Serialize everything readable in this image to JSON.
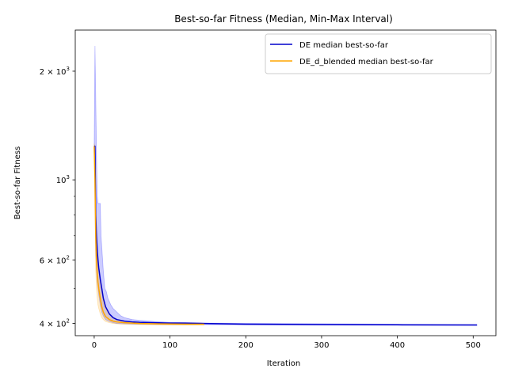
{
  "chart_data": {
    "type": "line",
    "title": "Best-so-far Fitness (Median, Min-Max Interval)",
    "xlabel": "Iteration",
    "ylabel": "Best-so-far Fitness",
    "xlim": [
      -25,
      530
    ],
    "ylim": [
      370,
      2600
    ],
    "yscale": "log",
    "grid": false,
    "legend_position": "upper right",
    "x_ticks": [
      {
        "value": 0,
        "label": "0"
      },
      {
        "value": 100,
        "label": "100"
      },
      {
        "value": 200,
        "label": "200"
      },
      {
        "value": 300,
        "label": "300"
      },
      {
        "value": 400,
        "label": "400"
      },
      {
        "value": 500,
        "label": "500"
      }
    ],
    "y_ticks_major": [
      {
        "value": 400,
        "base": "4",
        "exp": "2"
      },
      {
        "value": 600,
        "base": "6",
        "exp": "2"
      },
      {
        "value": 1000,
        "label": "10",
        "exp": "3"
      },
      {
        "value": 2000,
        "base": "2",
        "exp": "3"
      }
    ],
    "y_ticks_minor": [
      500,
      700,
      800,
      900
    ],
    "series": [
      {
        "name": "DE median best-so-far",
        "color": "#0000cc",
        "band_color": "#0000ff",
        "median": [
          [
            0,
            1240
          ],
          [
            1,
            1240
          ],
          [
            2,
            800
          ],
          [
            3,
            700
          ],
          [
            4,
            640
          ],
          [
            5,
            600
          ],
          [
            6,
            570
          ],
          [
            8,
            530
          ],
          [
            10,
            500
          ],
          [
            12,
            470
          ],
          [
            15,
            445
          ],
          [
            20,
            425
          ],
          [
            25,
            415
          ],
          [
            30,
            410
          ],
          [
            40,
            406
          ],
          [
            50,
            404
          ],
          [
            60,
            403
          ],
          [
            80,
            402
          ],
          [
            100,
            401
          ],
          [
            120,
            401
          ],
          [
            145,
            400
          ],
          [
            200,
            398
          ],
          [
            300,
            397
          ],
          [
            400,
            396.5
          ],
          [
            505,
            396
          ]
        ],
        "band_upper": [
          [
            0,
            1250
          ],
          [
            1,
            2350
          ],
          [
            2,
            1700
          ],
          [
            3,
            1200
          ],
          [
            4,
            900
          ],
          [
            5,
            860
          ],
          [
            6,
            860
          ],
          [
            8,
            860
          ],
          [
            9,
            700
          ],
          [
            10,
            650
          ],
          [
            12,
            560
          ],
          [
            14,
            500
          ],
          [
            16,
            490
          ],
          [
            18,
            470
          ],
          [
            20,
            460
          ],
          [
            22,
            450
          ],
          [
            25,
            440
          ],
          [
            30,
            430
          ],
          [
            35,
            420
          ],
          [
            40,
            415
          ],
          [
            50,
            410
          ],
          [
            60,
            408
          ],
          [
            80,
            405
          ],
          [
            100,
            403
          ],
          [
            145,
            401
          ],
          [
            505,
            397
          ]
        ],
        "band_lower": [
          [
            0,
            1230
          ],
          [
            1,
            1100
          ],
          [
            2,
            640
          ],
          [
            3,
            560
          ],
          [
            4,
            520
          ],
          [
            5,
            500
          ],
          [
            6,
            480
          ],
          [
            8,
            450
          ],
          [
            10,
            430
          ],
          [
            12,
            420
          ],
          [
            15,
            410
          ],
          [
            20,
            405
          ],
          [
            25,
            402
          ],
          [
            30,
            400
          ],
          [
            40,
            399
          ],
          [
            60,
            398
          ],
          [
            100,
            397
          ],
          [
            145,
            397
          ],
          [
            505,
            395
          ]
        ]
      },
      {
        "name": "DE_d_blended median best-so-far",
        "color": "#ffa500",
        "band_color": "#ffa500",
        "median": [
          [
            0,
            1240
          ],
          [
            1,
            1000
          ],
          [
            2,
            700
          ],
          [
            3,
            600
          ],
          [
            4,
            550
          ],
          [
            5,
            520
          ],
          [
            6,
            500
          ],
          [
            8,
            470
          ],
          [
            10,
            445
          ],
          [
            12,
            430
          ],
          [
            15,
            418
          ],
          [
            20,
            410
          ],
          [
            25,
            406
          ],
          [
            30,
            404
          ],
          [
            40,
            402
          ],
          [
            50,
            401
          ],
          [
            60,
            400
          ],
          [
            80,
            399
          ],
          [
            100,
            398.5
          ],
          [
            120,
            398
          ],
          [
            145,
            398
          ]
        ],
        "band_upper": [
          [
            0,
            1260
          ],
          [
            1,
            1240
          ],
          [
            2,
            900
          ],
          [
            3,
            720
          ],
          [
            4,
            640
          ],
          [
            5,
            600
          ],
          [
            6,
            560
          ],
          [
            8,
            520
          ],
          [
            10,
            490
          ],
          [
            12,
            460
          ],
          [
            15,
            440
          ],
          [
            20,
            425
          ],
          [
            25,
            415
          ],
          [
            30,
            410
          ],
          [
            40,
            406
          ],
          [
            50,
            404
          ],
          [
            60,
            402
          ],
          [
            100,
            400
          ],
          [
            145,
            399
          ]
        ],
        "band_lower": [
          [
            0,
            1200
          ],
          [
            1,
            800
          ],
          [
            2,
            560
          ],
          [
            3,
            500
          ],
          [
            4,
            470
          ],
          [
            5,
            450
          ],
          [
            6,
            440
          ],
          [
            8,
            425
          ],
          [
            10,
            415
          ],
          [
            12,
            410
          ],
          [
            15,
            405
          ],
          [
            20,
            402
          ],
          [
            25,
            400
          ],
          [
            30,
            399
          ],
          [
            40,
            398
          ],
          [
            60,
            397
          ],
          [
            100,
            396
          ],
          [
            145,
            396
          ]
        ]
      }
    ]
  }
}
